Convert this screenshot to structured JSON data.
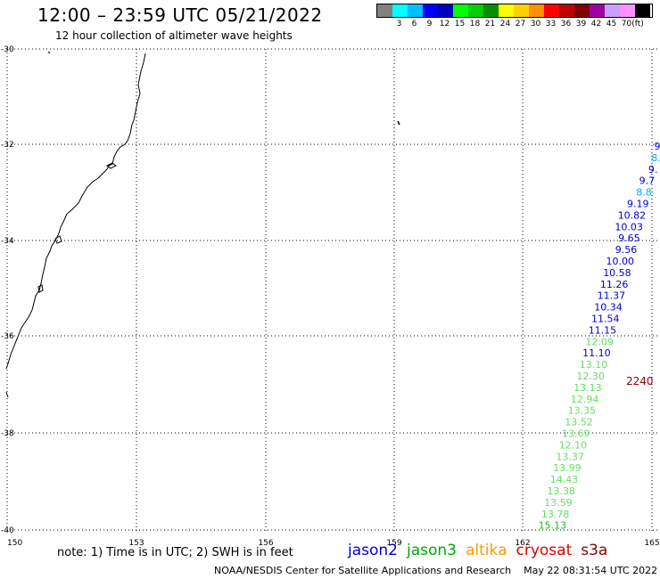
{
  "header": {
    "title": "12:00 – 23:59 UTC 05/21/2022",
    "subtitle": "12 hour collection of altimeter wave heights"
  },
  "scale": {
    "unit": "(ft)",
    "entries": [
      {
        "label": "",
        "color": "#808080"
      },
      {
        "label": "3",
        "color": "#00ffff"
      },
      {
        "label": "6",
        "color": "#00bfff"
      },
      {
        "label": "9",
        "color": "#0000ff"
      },
      {
        "label": "12",
        "color": "#0000c0"
      },
      {
        "label": "15",
        "color": "#00ff00"
      },
      {
        "label": "18",
        "color": "#00d000"
      },
      {
        "label": "21",
        "color": "#009000"
      },
      {
        "label": "24",
        "color": "#ffff00"
      },
      {
        "label": "27",
        "color": "#ffd000"
      },
      {
        "label": "30",
        "color": "#ff9000"
      },
      {
        "label": "33",
        "color": "#ff0000"
      },
      {
        "label": "36",
        "color": "#c00000"
      },
      {
        "label": "39",
        "color": "#800000"
      },
      {
        "label": "42",
        "color": "#a000a0"
      },
      {
        "label": "45",
        "color": "#c8a0ff"
      },
      {
        "label": "70",
        "color": "#ff90ff"
      },
      {
        "label": "",
        "color": "#000000"
      }
    ]
  },
  "map": {
    "lat_labels": [
      "-30",
      "-32",
      "-34",
      "-36",
      "-38",
      "-40"
    ],
    "lon_labels": [
      "150",
      "153",
      "156",
      "159",
      "162",
      "165"
    ],
    "observations": [
      {
        "text": "9.",
        "color": "#0000cc"
      },
      {
        "text": "8.",
        "color": "#00aaff"
      },
      {
        "text": "9.",
        "color": "#0000cc"
      },
      {
        "text": "9.7",
        "color": "#0000cc"
      },
      {
        "text": "8.8",
        "color": "#00aaff"
      },
      {
        "text": "9.19",
        "color": "#0000cc"
      },
      {
        "text": "10.82",
        "color": "#0000cc"
      },
      {
        "text": "10.03",
        "color": "#0000cc"
      },
      {
        "text": "9.65",
        "color": "#0000cc"
      },
      {
        "text": "9.56",
        "color": "#0000cc"
      },
      {
        "text": "10.00",
        "color": "#0000cc"
      },
      {
        "text": "10.58",
        "color": "#0000cc"
      },
      {
        "text": "11.26",
        "color": "#0000cc"
      },
      {
        "text": "11.37",
        "color": "#0000cc"
      },
      {
        "text": "10.34",
        "color": "#0000cc"
      },
      {
        "text": "11.54",
        "color": "#0000cc"
      },
      {
        "text": "11.15",
        "color": "#0000cc"
      },
      {
        "text": "12.09",
        "color": "#66dd66"
      },
      {
        "text": "11.10",
        "color": "#0000cc"
      },
      {
        "text": "13.10",
        "color": "#66dd66"
      },
      {
        "text": "12.30",
        "color": "#66dd66"
      },
      {
        "text": "13.13",
        "color": "#66dd66"
      },
      {
        "text": "12.94",
        "color": "#66dd66"
      },
      {
        "text": "13.35",
        "color": "#66dd66"
      },
      {
        "text": "13.52",
        "color": "#66dd66"
      },
      {
        "text": "13.69",
        "color": "#66dd66"
      },
      {
        "text": "12.10",
        "color": "#66dd66"
      },
      {
        "text": "13.37",
        "color": "#66dd66"
      },
      {
        "text": "13.99",
        "color": "#66dd66"
      },
      {
        "text": "14.43",
        "color": "#66dd66"
      },
      {
        "text": "13.38",
        "color": "#66dd66"
      },
      {
        "text": "13.59",
        "color": "#66dd66"
      },
      {
        "text": "13.78",
        "color": "#66dd66"
      },
      {
        "text": "15.13",
        "color": "#22bb22"
      }
    ],
    "time_marker": {
      "text": "2240",
      "color": "#880000"
    }
  },
  "footer": {
    "note": "note: 1) Time is in UTC; 2) SWH is in feet",
    "satellites": [
      {
        "name": "jason2",
        "color": "#0000dd"
      },
      {
        "name": "jason3",
        "color": "#00aa00"
      },
      {
        "name": "altika",
        "color": "#ff9900"
      },
      {
        "name": "cryosat",
        "color": "#dd0000"
      },
      {
        "name": "s3a",
        "color": "#880000"
      }
    ],
    "credit": "NOAA/NESDIS Center for Satellite Applications and Research",
    "timestamp": "May 22 08:31:54 UTC 2022"
  }
}
